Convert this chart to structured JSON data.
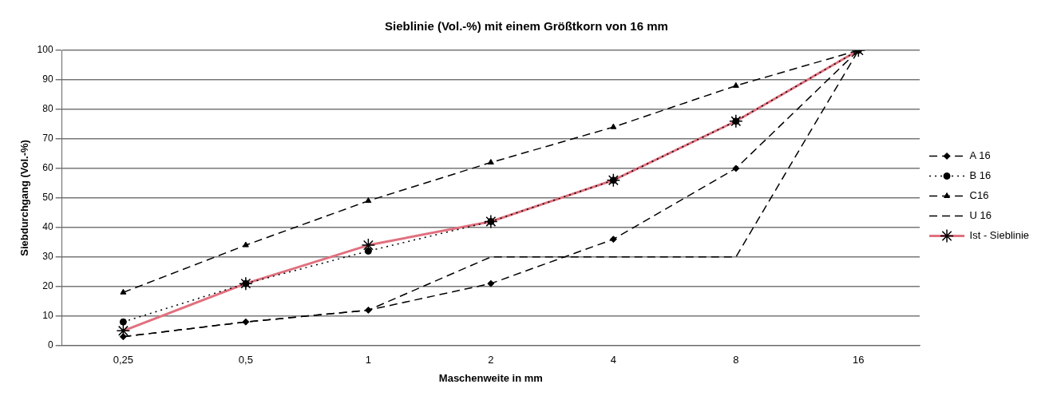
{
  "chart_data": {
    "type": "line",
    "title": "Sieblinie (Vol.-%) mit einem Größtkorn von 16 mm",
    "xlabel": "Maschenweite in mm",
    "ylabel": "Siebdurchgang (Vol.-%)",
    "categories": [
      "0,25",
      "0,5",
      "1",
      "2",
      "4",
      "8",
      "16"
    ],
    "series": [
      {
        "name": "A 16",
        "color": "#000000",
        "marker": "diamond",
        "line_style": "dashed",
        "values": [
          3,
          8,
          12,
          21,
          36,
          60,
          100
        ]
      },
      {
        "name": "B 16",
        "color": "#000000",
        "marker": "circle",
        "line_style": "dotted",
        "values": [
          8,
          21,
          32,
          42,
          56,
          76,
          100
        ]
      },
      {
        "name": "C16",
        "color": "#000000",
        "marker": "triangle",
        "line_style": "dashed",
        "values": [
          18,
          34,
          49,
          62,
          74,
          88,
          100
        ]
      },
      {
        "name": "U 16",
        "color": "#000000",
        "marker": "none",
        "line_style": "dashed",
        "values": [
          3,
          8,
          12,
          30,
          30,
          30,
          100
        ]
      },
      {
        "name": "Ist - Sieblinie",
        "color": "#e0707e",
        "marker": "cross",
        "line_style": "solid",
        "values": [
          5,
          21,
          34,
          42,
          56,
          76,
          100
        ]
      }
    ],
    "ylim": [
      0,
      100
    ],
    "yticks": [
      0,
      10,
      20,
      30,
      40,
      50,
      60,
      70,
      80,
      90,
      100
    ],
    "grid": "y",
    "legend": "right"
  }
}
